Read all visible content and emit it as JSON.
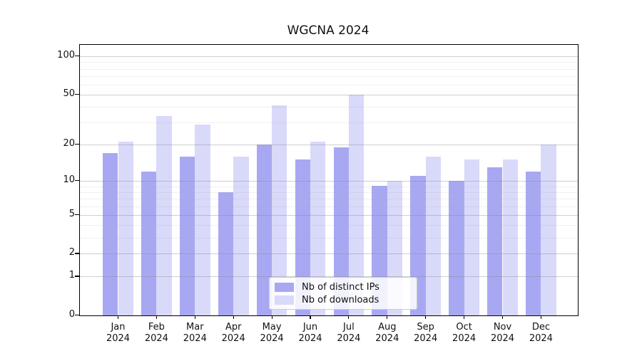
{
  "title": "WGCNA 2024",
  "background_color": "#ffffff",
  "chart_data": {
    "type": "bar",
    "title": "WGCNA 2024",
    "xlabel": "",
    "ylabel": "",
    "yscale": "log1p",
    "ylim": [
      0,
      123
    ],
    "grid": true,
    "legend_position": "lower center",
    "categories": [
      "Jan 2024",
      "Feb 2024",
      "Mar 2024",
      "Apr 2024",
      "May 2024",
      "Jun 2024",
      "Jul 2024",
      "Aug 2024",
      "Sep 2024",
      "Oct 2024",
      "Nov 2024",
      "Dec 2024"
    ],
    "month_labels": [
      "Jan",
      "Feb",
      "Mar",
      "Apr",
      "May",
      "Jun",
      "Jul",
      "Aug",
      "Sep",
      "Oct",
      "Nov",
      "Dec"
    ],
    "year_label": "2024",
    "ytick_values": [
      0,
      1,
      2,
      5,
      10,
      20,
      50,
      100
    ],
    "minor_gridline_values": [
      3,
      4,
      6,
      7,
      8,
      9,
      30,
      40,
      60,
      70,
      80,
      90
    ],
    "series": [
      {
        "name": "Nb of distinct IPs",
        "color": "#a8a8f2",
        "values": [
          17,
          12,
          16,
          8,
          20,
          15,
          19,
          9,
          11,
          10,
          13,
          12
        ]
      },
      {
        "name": "Nb of downloads",
        "color": "#d9d9fa",
        "values": [
          21,
          34,
          29,
          16,
          41,
          21,
          50,
          10,
          16,
          15,
          15,
          20
        ]
      }
    ]
  },
  "colors": {
    "axis": "#000000",
    "grid_major": "#c9c9c9",
    "grid_minor": "#e9e9e9",
    "legend_border": "#cccccc",
    "text": "#111111"
  }
}
